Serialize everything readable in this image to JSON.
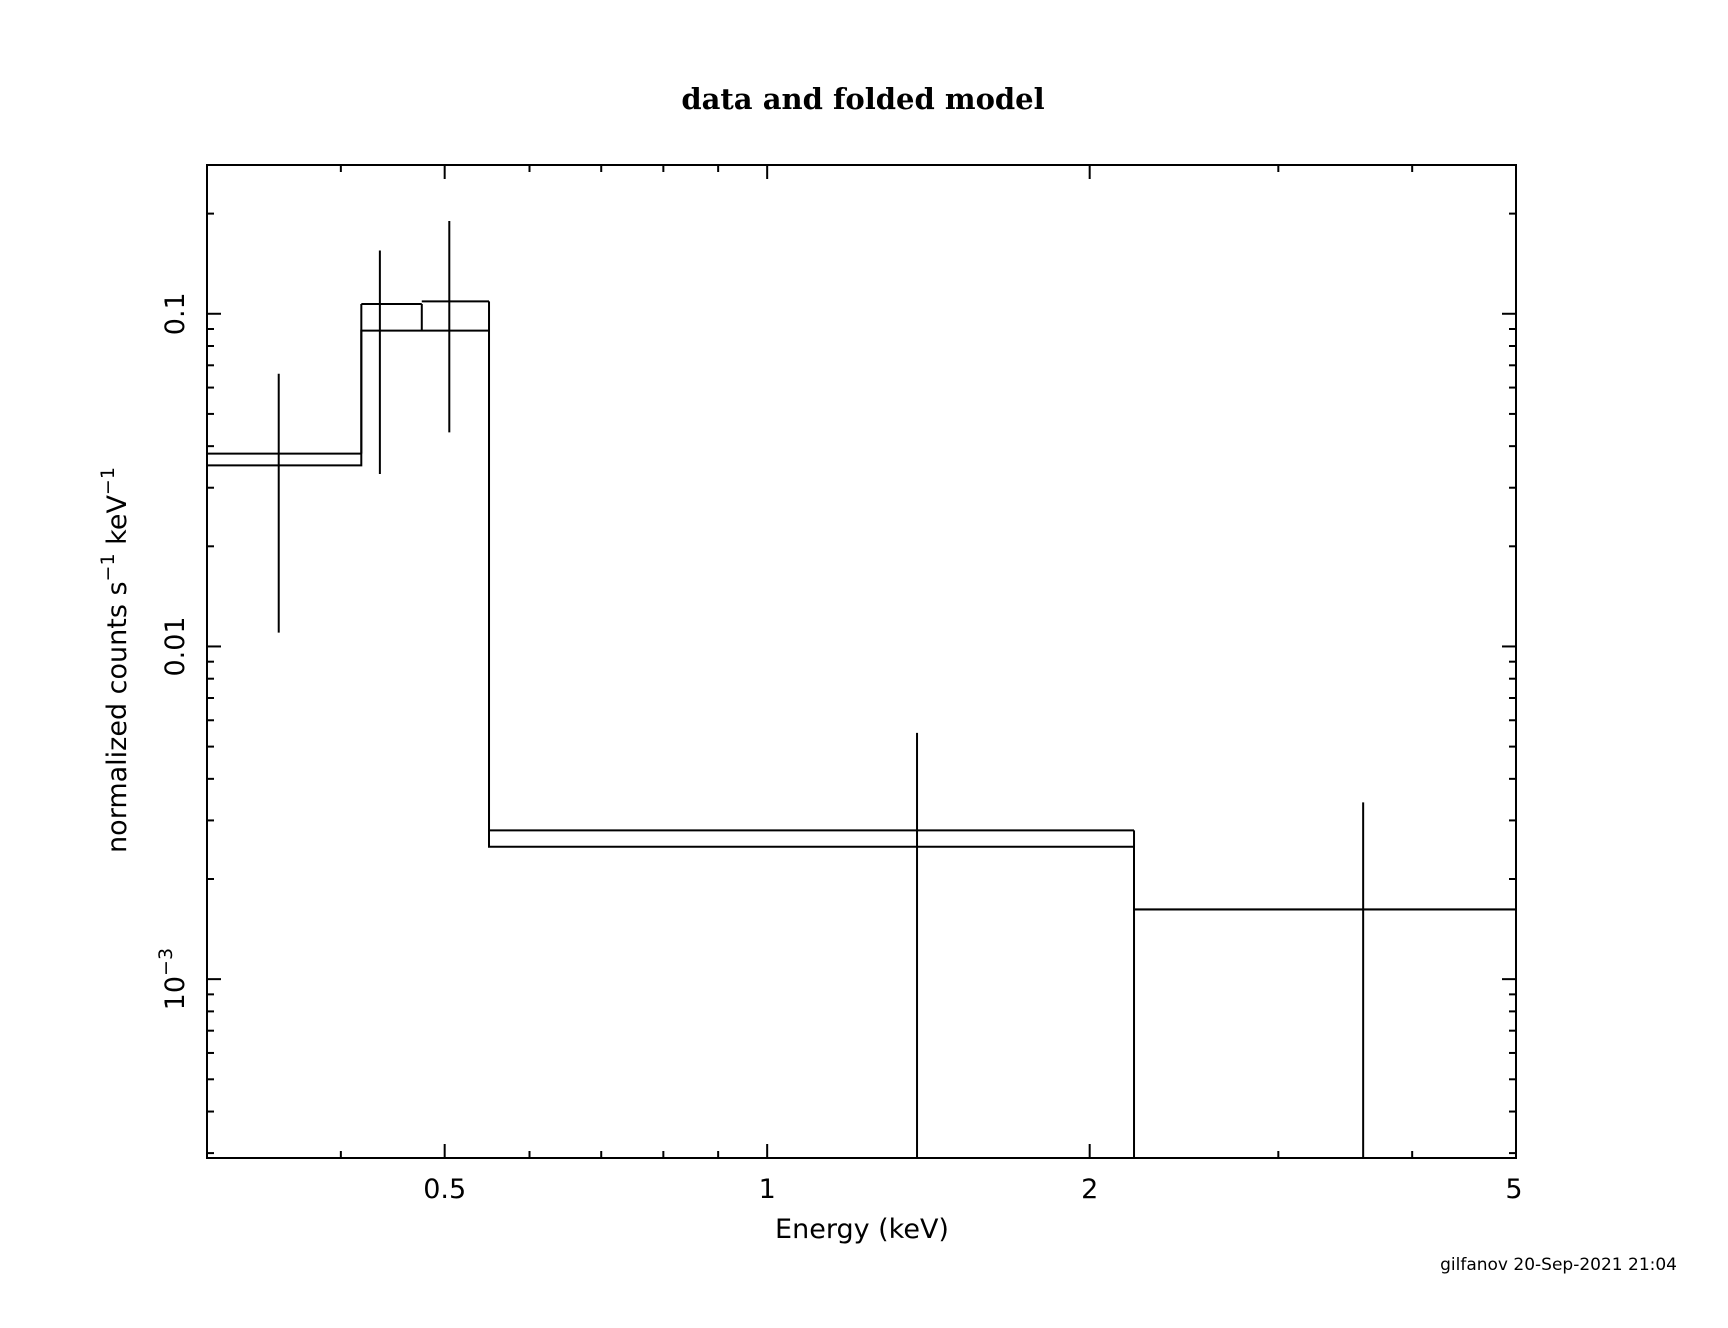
{
  "chart_data": {
    "type": "step",
    "title": "data and folded model",
    "xlabel": "Energy (keV)",
    "ylabel": "normalized counts s",
    "ylabel_sup1": "−1",
    "ylabel_mid": " keV",
    "ylabel_sup2": "−1",
    "x_scale": "log",
    "y_scale": "log",
    "xlim": [
      0.3,
      5
    ],
    "ylim": [
      0.00029,
      0.28
    ],
    "x_ticks": [
      {
        "value": 0.5,
        "label": "0.5"
      },
      {
        "value": 1,
        "label": "1"
      },
      {
        "value": 2,
        "label": "2"
      },
      {
        "value": 5,
        "label": "5"
      }
    ],
    "y_ticks": [
      {
        "value": 0.001,
        "label_base": "10",
        "label_sup": "−3"
      },
      {
        "value": 0.01,
        "label_base": "0.01",
        "label_sup": ""
      },
      {
        "value": 0.1,
        "label_base": "0.1",
        "label_sup": ""
      }
    ],
    "grid": false,
    "series": [
      {
        "role": "data",
        "points": [
          {
            "x": 0.35,
            "xlo": 0.3,
            "xhi": 0.418,
            "y": 0.038,
            "ylo": 0.011,
            "yhi": 0.066
          },
          {
            "x": 0.435,
            "xlo": 0.418,
            "xhi": 0.476,
            "y": 0.107,
            "ylo": 0.033,
            "yhi": 0.155
          },
          {
            "x": 0.505,
            "xlo": 0.476,
            "xhi": 0.55,
            "y": 0.109,
            "ylo": 0.044,
            "yhi": 0.19
          },
          {
            "x": 1.38,
            "xlo": 0.55,
            "xhi": 2.2,
            "y": 0.0028,
            "ylo": 0.00029,
            "yhi": 0.0055
          },
          {
            "x": 3.6,
            "xlo": 2.2,
            "xhi": 5,
            "y": 0.00162,
            "ylo": 0.00029,
            "yhi": 0.0034
          }
        ]
      },
      {
        "role": "model",
        "steps": [
          {
            "xlo": 0.3,
            "xhi": 0.418,
            "y": 0.035
          },
          {
            "xlo": 0.418,
            "xhi": 0.55,
            "y": 0.089
          },
          {
            "xlo": 0.55,
            "xhi": 2.2,
            "y": 0.0025
          },
          {
            "xlo": 2.2,
            "xhi": 5,
            "y": 0.00162
          }
        ]
      }
    ]
  },
  "footer": "gilfanov 20-Sep-2021 21:04"
}
